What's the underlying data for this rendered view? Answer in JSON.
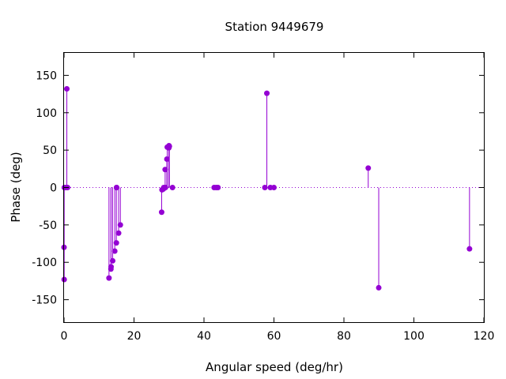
{
  "chart_data": {
    "type": "scatter",
    "style": "impulses-with-points",
    "title": "Station 9449679",
    "xlabel": "Angular speed (deg/hr)",
    "ylabel": "Phase (deg)",
    "xlim": [
      0,
      120
    ],
    "ylim": [
      -180,
      180
    ],
    "xticks": [
      0,
      20,
      40,
      60,
      80,
      100,
      120
    ],
    "yticks": [
      -150,
      -100,
      -50,
      0,
      50,
      100,
      150
    ],
    "grid": false,
    "zero_line": true,
    "series": [
      {
        "color": "#9400D3",
        "points": [
          {
            "x": 0.0,
            "y": -80
          },
          {
            "x": 0.04,
            "y": -123
          },
          {
            "x": 0.08,
            "y": 0
          },
          {
            "x": 0.5,
            "y": 0
          },
          {
            "x": 0.8,
            "y": 132
          },
          {
            "x": 1.0,
            "y": 0
          },
          {
            "x": 12.85,
            "y": -121
          },
          {
            "x": 13.4,
            "y": -109
          },
          {
            "x": 13.45,
            "y": -106
          },
          {
            "x": 13.9,
            "y": -98
          },
          {
            "x": 14.5,
            "y": -85
          },
          {
            "x": 14.96,
            "y": -74
          },
          {
            "x": 15.0,
            "y": 0
          },
          {
            "x": 15.04,
            "y": 0
          },
          {
            "x": 15.6,
            "y": -61
          },
          {
            "x": 16.1,
            "y": -50
          },
          {
            "x": 27.9,
            "y": -33
          },
          {
            "x": 28.0,
            "y": -3
          },
          {
            "x": 28.4,
            "y": -2
          },
          {
            "x": 28.5,
            "y": 0
          },
          {
            "x": 28.9,
            "y": 24
          },
          {
            "x": 29.0,
            "y": 0
          },
          {
            "x": 29.4,
            "y": 38
          },
          {
            "x": 29.5,
            "y": 54
          },
          {
            "x": 29.96,
            "y": 53
          },
          {
            "x": 30.0,
            "y": 56
          },
          {
            "x": 30.1,
            "y": 55
          },
          {
            "x": 31.0,
            "y": 0
          },
          {
            "x": 42.9,
            "y": 0
          },
          {
            "x": 43.5,
            "y": 0
          },
          {
            "x": 44.0,
            "y": 0
          },
          {
            "x": 57.4,
            "y": 0
          },
          {
            "x": 57.97,
            "y": 126
          },
          {
            "x": 58.98,
            "y": 0
          },
          {
            "x": 60.0,
            "y": 0
          },
          {
            "x": 86.95,
            "y": 26
          },
          {
            "x": 89.95,
            "y": -134
          },
          {
            "x": 115.9,
            "y": -82
          }
        ]
      }
    ]
  }
}
